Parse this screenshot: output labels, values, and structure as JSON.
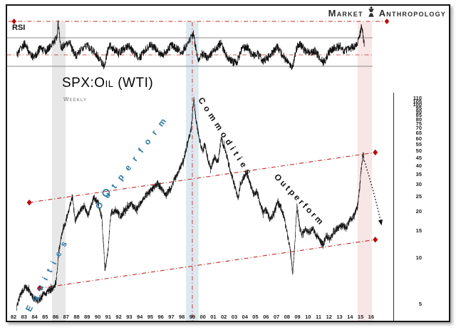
{
  "brand": {
    "word1": "Market",
    "word2": "Anthropology"
  },
  "rsi": {
    "label": "RSI"
  },
  "title": {
    "main": "SPX:Oil (WTI)",
    "sub": "Weekly"
  },
  "annotations": {
    "equities_word1": "Equities",
    "equities_word2": "Outperform",
    "commodities_word1": "Commodities",
    "commodities_word2": "Outperform"
  },
  "colors": {
    "line_red": "#bf2b25",
    "marker_red": "#c00000",
    "teal": "#2878a5",
    "series_black": "#151515",
    "band_gray": "#e7e7e7",
    "band_blue": "#dde9ef",
    "band_pink": "#f8e6e6",
    "level_gray": "#8a8a8a"
  },
  "chart_data": [
    {
      "type": "line",
      "panel": "RSI",
      "x_range": [
        1982,
        2016.2
      ],
      "levels": {
        "overbought": 70,
        "mid_red_line": 46,
        "oversold": 30,
        "extreme_red_line": 93
      },
      "extreme_line_years": [
        1982.05,
        2017.5
      ],
      "anchors": [
        [
          1982.3,
          45
        ],
        [
          1982.7,
          55
        ],
        [
          1983.1,
          62
        ],
        [
          1983.5,
          48
        ],
        [
          1984,
          42
        ],
        [
          1984.5,
          55
        ],
        [
          1985,
          50
        ],
        [
          1985.5,
          58
        ],
        [
          1986.1,
          70
        ],
        [
          1986.25,
          90
        ],
        [
          1986.5,
          55
        ],
        [
          1986.9,
          60
        ],
        [
          1987.3,
          65
        ],
        [
          1987.7,
          50
        ],
        [
          1988,
          44
        ],
        [
          1988.5,
          55
        ],
        [
          1989,
          60
        ],
        [
          1989.5,
          52
        ],
        [
          1990,
          45
        ],
        [
          1990.6,
          30
        ],
        [
          1991.1,
          60
        ],
        [
          1991.5,
          55
        ],
        [
          1992,
          48
        ],
        [
          1992.5,
          55
        ],
        [
          1993,
          58
        ],
        [
          1993.5,
          48
        ],
        [
          1994,
          42
        ],
        [
          1994.5,
          52
        ],
        [
          1995,
          60
        ],
        [
          1995.5,
          55
        ],
        [
          1996,
          45
        ],
        [
          1996.5,
          50
        ],
        [
          1997,
          60
        ],
        [
          1997.5,
          55
        ],
        [
          1998,
          50
        ],
        [
          1998.5,
          60
        ],
        [
          1998.9,
          72
        ],
        [
          1999.1,
          75
        ],
        [
          1999.5,
          40
        ],
        [
          2000,
          48
        ],
        [
          2000.5,
          42
        ],
        [
          2001,
          52
        ],
        [
          2001.7,
          62
        ],
        [
          2002.2,
          45
        ],
        [
          2002.7,
          38
        ],
        [
          2003.2,
          33
        ],
        [
          2003.7,
          55
        ],
        [
          2004.2,
          58
        ],
        [
          2004.7,
          45
        ],
        [
          2005.2,
          48
        ],
        [
          2005.7,
          38
        ],
        [
          2006.2,
          42
        ],
        [
          2006.7,
          50
        ],
        [
          2007.1,
          58
        ],
        [
          2007.6,
          45
        ],
        [
          2008,
          38
        ],
        [
          2008.5,
          27
        ],
        [
          2008.9,
          55
        ],
        [
          2009.2,
          62
        ],
        [
          2009.7,
          52
        ],
        [
          2010.2,
          48
        ],
        [
          2010.7,
          52
        ],
        [
          2011.1,
          42
        ],
        [
          2011.5,
          35
        ],
        [
          2012,
          50
        ],
        [
          2012.5,
          55
        ],
        [
          2013,
          58
        ],
        [
          2013.5,
          52
        ],
        [
          2014,
          55
        ],
        [
          2014.6,
          60
        ],
        [
          2014.9,
          72
        ],
        [
          2015.1,
          88
        ],
        [
          2015.35,
          60
        ]
      ]
    },
    {
      "type": "line",
      "panel": "SPX:Oil (WTI) weekly ratio",
      "yscale": "log",
      "ylim": [
        4.5,
        115
      ],
      "x_tick_labels": [
        "82",
        "83",
        "84",
        "85",
        "86",
        "87",
        "88",
        "89",
        "90",
        "91",
        "92",
        "93",
        "94",
        "95",
        "96",
        "97",
        "98",
        "99",
        "00",
        "01",
        "02",
        "03",
        "04",
        "05",
        "06",
        "07",
        "08",
        "09",
        "10",
        "11",
        "12",
        "13",
        "14",
        "15",
        "16"
      ],
      "y_tick_labels": [
        110,
        105,
        100,
        95,
        90,
        85,
        80,
        75,
        70,
        65,
        60,
        55,
        50,
        45,
        40,
        35,
        30,
        25,
        20,
        15,
        10,
        5
      ],
      "anchors": [
        [
          1982.3,
          4.8
        ],
        [
          1982.6,
          5.6
        ],
        [
          1983.1,
          6.5
        ],
        [
          1983.5,
          6.0
        ],
        [
          1983.9,
          5.4
        ],
        [
          1984.3,
          5.2
        ],
        [
          1984.8,
          5.7
        ],
        [
          1985.3,
          6.0
        ],
        [
          1985.8,
          6.3
        ],
        [
          1986.05,
          7.0
        ],
        [
          1986.3,
          11.0
        ],
        [
          1986.6,
          14.5
        ],
        [
          1986.9,
          16.5
        ],
        [
          1987.2,
          20.0
        ],
        [
          1987.6,
          25.0
        ],
        [
          1987.85,
          17.5
        ],
        [
          1988.2,
          19.5
        ],
        [
          1988.7,
          22.0
        ],
        [
          1989.1,
          19.0
        ],
        [
          1989.6,
          24.5
        ],
        [
          1990.0,
          23.5
        ],
        [
          1990.4,
          18.0
        ],
        [
          1990.7,
          8.2
        ],
        [
          1991.0,
          11.5
        ],
        [
          1991.25,
          19.5
        ],
        [
          1991.7,
          20.5
        ],
        [
          1992.2,
          18.5
        ],
        [
          1992.7,
          21.0
        ],
        [
          1993.2,
          22.5
        ],
        [
          1993.7,
          20.5
        ],
        [
          1994.2,
          23.5
        ],
        [
          1994.7,
          26.0
        ],
        [
          1995.2,
          28.0
        ],
        [
          1995.7,
          30.5
        ],
        [
          1996.1,
          28.0
        ],
        [
          1996.5,
          25.5
        ],
        [
          1997.0,
          29.0
        ],
        [
          1997.4,
          33.5
        ],
        [
          1997.8,
          38.0
        ],
        [
          1998.2,
          44.0
        ],
        [
          1998.6,
          57.0
        ],
        [
          1998.9,
          70.0
        ],
        [
          1999.05,
          93.0
        ],
        [
          1999.15,
          107.0
        ],
        [
          1999.3,
          86.0
        ],
        [
          1999.5,
          68.0
        ],
        [
          1999.75,
          56.0
        ],
        [
          2000.0,
          49.0
        ],
        [
          2000.2,
          56.0
        ],
        [
          2000.5,
          43.0
        ],
        [
          2000.8,
          38.0
        ],
        [
          2001.1,
          46.0
        ],
        [
          2001.45,
          42.0
        ],
        [
          2001.75,
          60.0
        ],
        [
          2002.0,
          53.0
        ],
        [
          2002.3,
          46.0
        ],
        [
          2002.6,
          37.0
        ],
        [
          2002.9,
          32.0
        ],
        [
          2003.15,
          27.0
        ],
        [
          2003.35,
          24.5
        ],
        [
          2003.6,
          30.5
        ],
        [
          2003.95,
          34.0
        ],
        [
          2004.2,
          35.5
        ],
        [
          2004.55,
          29.5
        ],
        [
          2004.85,
          26.0
        ],
        [
          2005.1,
          27.5
        ],
        [
          2005.45,
          22.5
        ],
        [
          2005.75,
          19.5
        ],
        [
          2006.05,
          20.5
        ],
        [
          2006.4,
          17.5
        ],
        [
          2006.8,
          20.0
        ],
        [
          2007.1,
          23.0
        ],
        [
          2007.45,
          21.0
        ],
        [
          2007.75,
          18.0
        ],
        [
          2008.05,
          14.0
        ],
        [
          2008.3,
          11.5
        ],
        [
          2008.55,
          7.8
        ],
        [
          2008.75,
          12.5
        ],
        [
          2008.95,
          21.5
        ],
        [
          2009.2,
          16.0
        ],
        [
          2009.45,
          14.0
        ],
        [
          2009.75,
          15.5
        ],
        [
          2010.1,
          14.5
        ],
        [
          2010.45,
          15.5
        ],
        [
          2010.8,
          14.0
        ],
        [
          2011.1,
          13.0
        ],
        [
          2011.45,
          12.2
        ],
        [
          2011.75,
          14.0
        ],
        [
          2012.1,
          13.2
        ],
        [
          2012.45,
          14.8
        ],
        [
          2012.8,
          15.5
        ],
        [
          2013.2,
          16.2
        ],
        [
          2013.6,
          15.6
        ],
        [
          2014.0,
          17.5
        ],
        [
          2014.4,
          19.0
        ],
        [
          2014.7,
          21.5
        ],
        [
          2014.9,
          28.0
        ],
        [
          2015.05,
          37.0
        ],
        [
          2015.2,
          45.0
        ],
        [
          2015.3,
          46.5
        ]
      ],
      "trend_channel": {
        "upper": {
          "from": [
            1983.5,
            22.9
          ],
          "to": [
            2016.4,
            48.6
          ]
        },
        "lower": {
          "from": [
            1984.45,
            6.3
          ],
          "to": [
            2016.4,
            13.1
          ]
        }
      },
      "event_vline_year": 1999.0,
      "highlight_bands": [
        {
          "from": 1985.66,
          "to": 1986.95,
          "color_key": "band_gray"
        },
        {
          "from": 1998.4,
          "to": 1999.6,
          "color_key": "band_blue"
        },
        {
          "from": 2014.7,
          "to": 2016.07,
          "color_key": "band_pink"
        }
      ],
      "circle_marker": [
        1990.8,
        26.5
      ],
      "projection_arrow": {
        "from": [
          2015.35,
          43
        ],
        "via": [
          2016.35,
          26
        ],
        "to": [
          2017.0,
          16.2
        ]
      }
    }
  ]
}
